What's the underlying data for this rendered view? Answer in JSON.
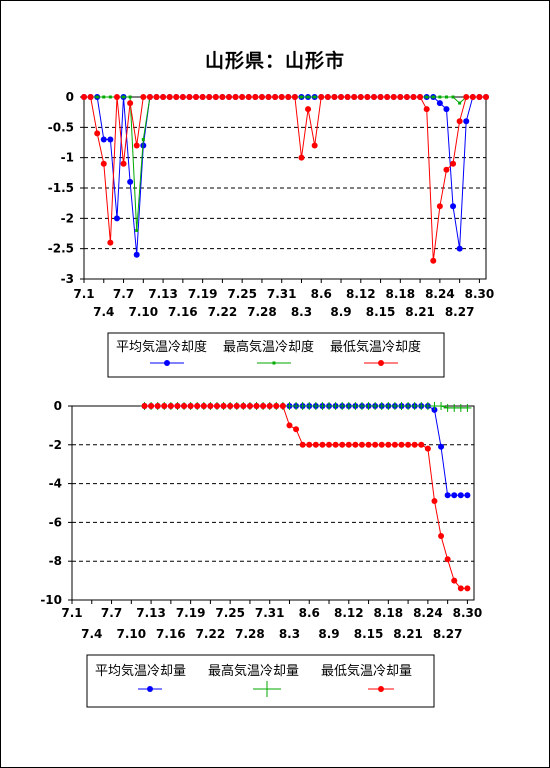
{
  "title": "山形県：山形市",
  "chart_data": [
    {
      "type": "line",
      "x_ticks_top": [
        "7.1",
        "7.7",
        "7.13",
        "7.19",
        "7.25",
        "7.31",
        "8.6",
        "8.12",
        "8.18",
        "8.24",
        "8.30"
      ],
      "x_ticks_bottom": [
        "7.4",
        "7.10",
        "7.16",
        "7.22",
        "7.28",
        "8.3",
        "8.9",
        "8.15",
        "8.21",
        "8.27"
      ],
      "ylim": [
        -3,
        0
      ],
      "y_ticks": [
        0,
        -0.5,
        -1,
        -1.5,
        -2,
        -2.5,
        -3
      ],
      "grid": "horizontal-dashed",
      "x_day_range": [
        1,
        62
      ],
      "legend_placement": "below",
      "series": [
        {
          "name": "平均気温冷却度",
          "color": "#0000ff",
          "marker": "dot",
          "x": [
            1,
            2,
            3,
            4,
            5,
            6,
            7,
            8,
            9,
            10,
            11,
            12,
            13,
            14,
            15,
            16,
            17,
            18,
            19,
            20,
            21,
            22,
            23,
            24,
            25,
            26,
            27,
            28,
            29,
            30,
            31,
            32,
            33,
            34,
            35,
            36,
            37,
            38,
            39,
            40,
            41,
            42,
            43,
            44,
            45,
            46,
            47,
            48,
            49,
            50,
            51,
            52,
            53,
            54,
            55,
            56,
            57,
            58,
            59,
            60,
            61,
            62
          ],
          "y": [
            0,
            0,
            0,
            -0.7,
            -0.7,
            -2,
            0,
            -1.4,
            -2.6,
            -0.8,
            0,
            0,
            0,
            0,
            0,
            0,
            0,
            0,
            0,
            0,
            0,
            0,
            0,
            0,
            0,
            0,
            0,
            0,
            0,
            0,
            0,
            0,
            0,
            0,
            0,
            0,
            0,
            0,
            0,
            0,
            0,
            0,
            0,
            0,
            0,
            0,
            0,
            0,
            0,
            0,
            0,
            0,
            0,
            0,
            -0.1,
            -0.2,
            -1.8,
            -2.5,
            -0.4,
            0,
            0,
            0
          ]
        },
        {
          "name": "最高気温冷却度",
          "color": "#00aa00",
          "marker": "square",
          "x": [
            1,
            2,
            3,
            4,
            5,
            6,
            7,
            8,
            9,
            10,
            11,
            12,
            13,
            14,
            15,
            16,
            17,
            18,
            19,
            20,
            21,
            22,
            23,
            24,
            25,
            26,
            27,
            28,
            29,
            30,
            31,
            32,
            33,
            34,
            35,
            36,
            37,
            38,
            39,
            40,
            41,
            42,
            43,
            44,
            45,
            46,
            47,
            48,
            49,
            50,
            51,
            52,
            53,
            54,
            55,
            56,
            57,
            58,
            59,
            60,
            61,
            62
          ],
          "y": [
            0,
            0,
            0,
            0,
            0,
            0,
            0,
            0,
            -2.2,
            -0.7,
            0,
            0,
            0,
            0,
            0,
            0,
            0,
            0,
            0,
            0,
            0,
            0,
            0,
            0,
            0,
            0,
            0,
            0,
            0,
            0,
            0,
            0,
            0,
            0,
            0,
            0,
            0,
            0,
            0,
            0,
            0,
            0,
            0,
            0,
            0,
            0,
            0,
            0,
            0,
            0,
            0,
            0,
            0,
            0,
            0,
            0,
            0,
            -0.1,
            0,
            0,
            0,
            0
          ]
        },
        {
          "name": "最低気温冷却度",
          "color": "#ff0000",
          "marker": "dot",
          "x": [
            1,
            2,
            3,
            4,
            5,
            6,
            7,
            8,
            9,
            10,
            11,
            12,
            13,
            14,
            15,
            16,
            17,
            18,
            19,
            20,
            21,
            22,
            23,
            24,
            25,
            26,
            27,
            28,
            29,
            30,
            31,
            32,
            33,
            34,
            35,
            36,
            37,
            38,
            39,
            40,
            41,
            42,
            43,
            44,
            45,
            46,
            47,
            48,
            49,
            50,
            51,
            52,
            53,
            54,
            55,
            56,
            57,
            58,
            59,
            60,
            61,
            62
          ],
          "y": [
            0,
            0,
            -0.6,
            -1.1,
            -2.4,
            0,
            -1.1,
            -0.1,
            -0.8,
            0,
            0,
            0,
            0,
            0,
            0,
            0,
            0,
            0,
            0,
            0,
            0,
            0,
            0,
            0,
            0,
            0,
            0,
            0,
            0,
            0,
            0,
            0,
            0,
            -1,
            -0.2,
            -0.8,
            0,
            0,
            0,
            0,
            0,
            0,
            0,
            0,
            0,
            0,
            0,
            0,
            0,
            0,
            0,
            0,
            -0.2,
            -2.7,
            -1.8,
            -1.2,
            -1.1,
            -0.4,
            0,
            0,
            0,
            0
          ]
        }
      ]
    },
    {
      "type": "line",
      "x_ticks_top": [
        "7.1",
        "7.7",
        "7.13",
        "7.19",
        "7.25",
        "7.31",
        "8.6",
        "8.12",
        "8.18",
        "8.24",
        "8.30"
      ],
      "x_ticks_bottom": [
        "7.4",
        "7.10",
        "7.16",
        "7.22",
        "7.28",
        "8.3",
        "8.9",
        "8.15",
        "8.21",
        "8.27"
      ],
      "ylim": [
        -10,
        0
      ],
      "y_ticks": [
        0,
        -2,
        -4,
        -6,
        -8,
        -10
      ],
      "grid": "horizontal-dashed",
      "x_day_range": [
        1,
        62
      ],
      "legend_placement": "below",
      "series": [
        {
          "name": "平均気温冷却量",
          "color": "#0000ff",
          "marker": "dot",
          "x": [
            12,
            13,
            14,
            15,
            16,
            17,
            18,
            19,
            20,
            21,
            22,
            23,
            24,
            25,
            26,
            27,
            28,
            29,
            30,
            31,
            32,
            33,
            34,
            35,
            36,
            37,
            38,
            39,
            40,
            41,
            42,
            43,
            44,
            45,
            46,
            47,
            48,
            49,
            50,
            51,
            52,
            53,
            54,
            55,
            56,
            57,
            58,
            59,
            60,
            61
          ],
          "y": [
            0,
            0,
            0,
            0,
            0,
            0,
            0,
            0,
            0,
            0,
            0,
            0,
            0,
            0,
            0,
            0,
            0,
            0,
            0,
            0,
            0,
            0,
            0,
            0,
            0,
            0,
            0,
            0,
            0,
            0,
            0,
            0,
            0,
            0,
            0,
            0,
            0,
            0,
            0,
            0,
            0,
            0,
            0,
            0,
            -0.2,
            -2.1,
            -4.6,
            -4.6,
            -4.6,
            -4.6
          ]
        },
        {
          "name": "最高気温冷却量",
          "color": "#00aa00",
          "marker": "plus",
          "x": [
            12,
            13,
            14,
            15,
            16,
            17,
            18,
            19,
            20,
            21,
            22,
            23,
            24,
            25,
            26,
            27,
            28,
            29,
            30,
            31,
            32,
            33,
            34,
            35,
            36,
            37,
            38,
            39,
            40,
            41,
            42,
            43,
            44,
            45,
            46,
            47,
            48,
            49,
            50,
            51,
            52,
            53,
            54,
            55,
            56,
            57,
            58,
            59,
            60,
            61
          ],
          "y": [
            0,
            0,
            0,
            0,
            0,
            0,
            0,
            0,
            0,
            0,
            0,
            0,
            0,
            0,
            0,
            0,
            0,
            0,
            0,
            0,
            0,
            0,
            0,
            0,
            0,
            0,
            0,
            0,
            0,
            0,
            0,
            0,
            0,
            0,
            0,
            0,
            0,
            0,
            0,
            0,
            0,
            0,
            0,
            0,
            0,
            0,
            -0.1,
            -0.1,
            -0.1,
            -0.1
          ]
        },
        {
          "name": "最低気温冷却量",
          "color": "#ff0000",
          "marker": "dot",
          "x": [
            12,
            13,
            14,
            15,
            16,
            17,
            18,
            19,
            20,
            21,
            22,
            23,
            24,
            25,
            26,
            27,
            28,
            29,
            30,
            31,
            32,
            33,
            34,
            35,
            36,
            37,
            38,
            39,
            40,
            41,
            42,
            43,
            44,
            45,
            46,
            47,
            48,
            49,
            50,
            51,
            52,
            53,
            54,
            55,
            56,
            57,
            58,
            59,
            60,
            61
          ],
          "y": [
            0,
            0,
            0,
            0,
            0,
            0,
            0,
            0,
            0,
            0,
            0,
            0,
            0,
            0,
            0,
            0,
            0,
            0,
            0,
            0,
            0,
            0,
            -1,
            -1.2,
            -2,
            -2,
            -2,
            -2,
            -2,
            -2,
            -2,
            -2,
            -2,
            -2,
            -2,
            -2,
            -2,
            -2,
            -2,
            -2,
            -2,
            -2,
            -2,
            -2.2,
            -4.9,
            -6.7,
            -7.9,
            -9,
            -9.4,
            -9.4
          ]
        }
      ]
    }
  ]
}
